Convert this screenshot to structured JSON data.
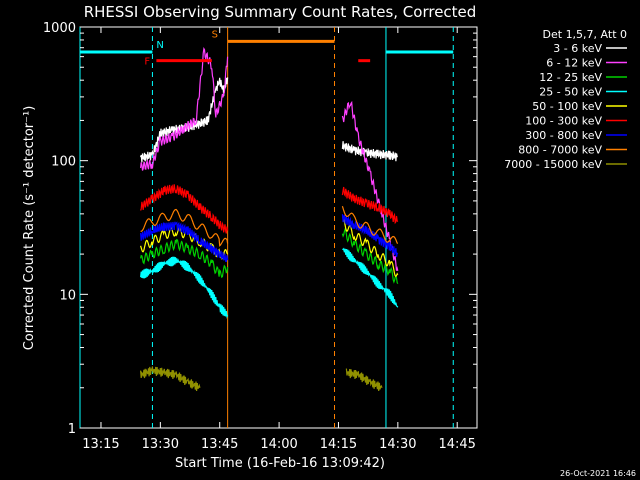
{
  "chart_data": {
    "type": "line",
    "title": "RHESSI Observing Summary Count Rates, Corrected",
    "xlabel": "Start Time (16-Feb-16 13:09:42)",
    "ylabel": "Corrected Count Rate (s⁻¹ detector⁻¹)",
    "xlim": [
      "13:09:42",
      "14:50"
    ],
    "ylim": [
      1,
      1000
    ],
    "yscale": "log",
    "x_ticks": [
      "13:15",
      "13:30",
      "13:45",
      "14:00",
      "14:15",
      "14:30",
      "14:45"
    ],
    "y_ticks": [
      "1",
      "10",
      "100",
      "1000"
    ],
    "legend_title": "Det 1,5,7, Att 0",
    "legend_position": "right",
    "footer": "26-Oct-2021 16:46",
    "series": [
      {
        "name": "3 - 6 keV",
        "color": "#ffffff",
        "segments": [
          [
            [
              "13:25",
              105
            ],
            [
              "13:28",
              110
            ],
            [
              "13:30",
              160
            ],
            [
              "13:33",
              170
            ],
            [
              "13:36",
              175
            ],
            [
              "13:39",
              185
            ],
            [
              "13:42",
              200
            ],
            [
              "13:44",
              340
            ],
            [
              "13:45",
              400
            ],
            [
              "13:46",
              330
            ],
            [
              "13:47",
              420
            ]
          ],
          [
            [
              "14:16",
              130
            ],
            [
              "14:19",
              120
            ],
            [
              "14:22",
              115
            ],
            [
              "14:25",
              112
            ],
            [
              "14:28",
              110
            ],
            [
              "14:30",
              107
            ]
          ]
        ]
      },
      {
        "name": "6 - 12 keV",
        "color": "#ff40ff",
        "segments": [
          [
            [
              "13:25",
              90
            ],
            [
              "13:28",
              95
            ],
            [
              "13:30",
              140
            ],
            [
              "13:33",
              150
            ],
            [
              "13:36",
              175
            ],
            [
              "13:39",
              200
            ],
            [
              "13:41",
              650
            ],
            [
              "13:43",
              520
            ],
            [
              "13:44",
              220
            ],
            [
              "13:46",
              310
            ],
            [
              "13:47",
              600
            ]
          ],
          [
            [
              "14:16",
              200
            ],
            [
              "14:18",
              280
            ],
            [
              "14:20",
              150
            ],
            [
              "14:23",
              80
            ],
            [
              "14:26",
              40
            ],
            [
              "14:28",
              25
            ],
            [
              "14:30",
              15
            ]
          ]
        ]
      },
      {
        "name": "12 - 25 keV",
        "color": "#00d000",
        "segments": [
          [
            [
              "13:25",
              18
            ],
            [
              "13:28",
              20
            ],
            [
              "13:31",
              22
            ],
            [
              "13:34",
              24
            ],
            [
              "13:37",
              22
            ],
            [
              "13:40",
              20
            ],
            [
              "13:43",
              17
            ],
            [
              "13:45",
              14
            ],
            [
              "13:47",
              16
            ]
          ],
          [
            [
              "14:16",
              30
            ],
            [
              "14:19",
              24
            ],
            [
              "14:22",
              20
            ],
            [
              "14:25",
              17
            ],
            [
              "14:28",
              15
            ],
            [
              "14:30",
              12
            ]
          ]
        ]
      },
      {
        "name": "25 - 50 keV",
        "color": "#00ffff",
        "segments": [
          [
            [
              "13:25",
              14
            ],
            [
              "13:28",
              15
            ],
            [
              "13:31",
              17
            ],
            [
              "13:34",
              18
            ],
            [
              "13:37",
              16
            ],
            [
              "13:40",
              13
            ],
            [
              "13:43",
              10
            ],
            [
              "13:45",
              8
            ],
            [
              "13:47",
              7
            ]
          ],
          [
            [
              "14:16",
              22
            ],
            [
              "14:19",
              18
            ],
            [
              "14:22",
              15
            ],
            [
              "14:25",
              12
            ],
            [
              "14:28",
              10
            ],
            [
              "14:30",
              8
            ]
          ]
        ]
      },
      {
        "name": "50 - 100 keV",
        "color": "#ffff00",
        "segments": [
          [
            [
              "13:25",
              22
            ],
            [
              "13:28",
              25
            ],
            [
              "13:31",
              28
            ],
            [
              "13:34",
              30
            ],
            [
              "13:37",
              28
            ],
            [
              "13:40",
              25
            ],
            [
              "13:43",
              22
            ],
            [
              "13:45",
              20
            ],
            [
              "13:47",
              20
            ]
          ],
          [
            [
              "14:16",
              35
            ],
            [
              "14:19",
              28
            ],
            [
              "14:22",
              24
            ],
            [
              "14:25",
              20
            ],
            [
              "14:28",
              17
            ],
            [
              "14:30",
              14
            ]
          ]
        ]
      },
      {
        "name": "100 - 300 keV",
        "color": "#ff0000",
        "segments": [
          [
            [
              "13:25",
              45
            ],
            [
              "13:28",
              52
            ],
            [
              "13:31",
              60
            ],
            [
              "13:34",
              62
            ],
            [
              "13:37",
              55
            ],
            [
              "13:40",
              45
            ],
            [
              "13:43",
              38
            ],
            [
              "13:45",
              33
            ],
            [
              "13:47",
              30
            ]
          ],
          [
            [
              "14:16",
              60
            ],
            [
              "14:19",
              52
            ],
            [
              "14:22",
              48
            ],
            [
              "14:25",
              45
            ],
            [
              "14:28",
              40
            ],
            [
              "14:30",
              35
            ]
          ]
        ]
      },
      {
        "name": "300 - 800 keV",
        "color": "#0000ff",
        "segments": [
          [
            [
              "13:25",
              27
            ],
            [
              "13:28",
              30
            ],
            [
              "13:31",
              32
            ],
            [
              "13:34",
              33
            ],
            [
              "13:37",
              30
            ],
            [
              "13:40",
              25
            ],
            [
              "13:43",
              22
            ],
            [
              "13:45",
              20
            ],
            [
              "13:47",
              18
            ]
          ],
          [
            [
              "14:16",
              38
            ],
            [
              "14:19",
              33
            ],
            [
              "14:22",
              30
            ],
            [
              "14:25",
              26
            ],
            [
              "14:28",
              23
            ],
            [
              "14:30",
              20
            ]
          ]
        ]
      },
      {
        "name": "800 - 7000 keV",
        "color": "#ff8000",
        "segments": [
          [
            [
              "13:25",
              32
            ],
            [
              "13:28",
              35
            ],
            [
              "13:31",
              38
            ],
            [
              "13:34",
              40
            ],
            [
              "13:37",
              37
            ],
            [
              "13:40",
              32
            ],
            [
              "13:43",
              28
            ],
            [
              "13:45",
              25
            ],
            [
              "13:47",
              24
            ]
          ],
          [
            [
              "14:16",
              45
            ],
            [
              "14:19",
              36
            ],
            [
              "14:22",
              32
            ],
            [
              "14:25",
              29
            ],
            [
              "14:28",
              26
            ],
            [
              "14:30",
              24
            ]
          ]
        ]
      },
      {
        "name": "7000 - 15000 keV",
        "color": "#909000",
        "segments": [
          [
            [
              "13:25",
              2.5
            ],
            [
              "13:28",
              2.7
            ],
            [
              "13:31",
              2.6
            ],
            [
              "13:34",
              2.5
            ],
            [
              "13:37",
              2.2
            ],
            [
              "13:40",
              2.0
            ]
          ],
          [
            [
              "14:17",
              2.6
            ],
            [
              "14:20",
              2.5
            ],
            [
              "14:23",
              2.2
            ],
            [
              "14:26",
              2.0
            ]
          ]
        ]
      }
    ],
    "flag_lines": [
      {
        "label": "",
        "color": "#00ffff",
        "y": 650,
        "x_start": "13:09:42",
        "x_end": "13:28"
      },
      {
        "label": "N",
        "color": "#00ffff",
        "y": 650,
        "x_start": "13:28",
        "x_end": "13:28"
      },
      {
        "label": "F",
        "color": "#ff0000",
        "y": 560,
        "x_start": "13:29",
        "x_end": "13:43"
      },
      {
        "label": "S",
        "color": "#ff8000",
        "y": 780,
        "x_start": "13:47",
        "x_end": "14:14"
      },
      {
        "label": "",
        "color": "#ff0000",
        "y": 560,
        "x_start": "14:20",
        "x_end": "14:23"
      },
      {
        "label": "",
        "color": "#00ffff",
        "y": 650,
        "x_start": "14:27",
        "x_end": "14:44"
      }
    ],
    "vertical_markers": [
      {
        "x": "13:09:42",
        "color": "#00ffff",
        "style": "solid"
      },
      {
        "x": "13:28",
        "color": "#00ffff",
        "style": "dashed"
      },
      {
        "x": "13:47",
        "color": "#ff8000",
        "style": "solid"
      },
      {
        "x": "14:14",
        "color": "#ff8000",
        "style": "dashed"
      },
      {
        "x": "14:27",
        "color": "#00ffff",
        "style": "solid"
      },
      {
        "x": "14:44",
        "color": "#00ffff",
        "style": "dashed"
      }
    ]
  }
}
